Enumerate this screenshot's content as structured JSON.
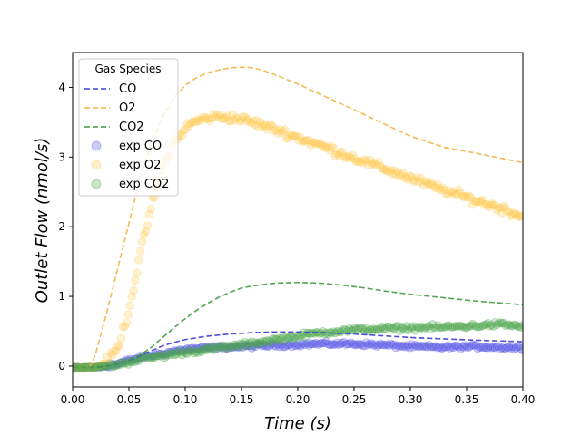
{
  "chart_data": {
    "type": "line",
    "title": "",
    "xlabel_main": "Time",
    "xlabel_unit": "(s)",
    "ylabel_main": "Outlet Flow",
    "ylabel_unit": "(nmol/s)",
    "xlim": [
      0.0,
      0.4
    ],
    "ylim": [
      -0.3,
      4.5
    ],
    "x_ticks": [
      0.0,
      0.05,
      0.1,
      0.15,
      0.2,
      0.25,
      0.3,
      0.35,
      0.4
    ],
    "x_tick_labels": [
      "0.00",
      "0.05",
      "0.10",
      "0.15",
      "0.20",
      "0.25",
      "0.30",
      "0.35",
      "0.40"
    ],
    "y_ticks": [
      0,
      1,
      2,
      3,
      4
    ],
    "y_tick_labels": [
      "0",
      "1",
      "2",
      "3",
      "4"
    ],
    "grid": false,
    "legend": {
      "title": "Gas Species",
      "placement": "top-left",
      "entries": [
        "CO",
        "O2",
        "CO2",
        "exp CO",
        "exp O2",
        "exp CO2"
      ]
    },
    "colors": {
      "CO": "#3b3bdc",
      "O2": "#f5b342",
      "CO2": "#3f9c3f",
      "exp_CO": "#5555e6",
      "exp_O2": "#ffc850",
      "exp_CO2": "#4ca64c"
    },
    "model_series": [
      {
        "name": "CO",
        "color_key": "CO",
        "x": [
          0.0,
          0.02,
          0.03,
          0.04,
          0.05,
          0.06,
          0.07,
          0.08,
          0.09,
          0.1,
          0.12,
          0.14,
          0.16,
          0.18,
          0.2,
          0.22,
          0.25,
          0.28,
          0.3,
          0.33,
          0.36,
          0.4
        ],
        "y": [
          -0.02,
          -0.02,
          0.0,
          0.03,
          0.08,
          0.15,
          0.22,
          0.29,
          0.34,
          0.38,
          0.43,
          0.46,
          0.48,
          0.49,
          0.49,
          0.48,
          0.46,
          0.43,
          0.41,
          0.39,
          0.37,
          0.35
        ]
      },
      {
        "name": "O2",
        "color_key": "O2",
        "x": [
          0.0,
          0.015,
          0.02,
          0.03,
          0.04,
          0.05,
          0.06,
          0.07,
          0.08,
          0.09,
          0.1,
          0.11,
          0.12,
          0.13,
          0.14,
          0.15,
          0.16,
          0.17,
          0.18,
          0.2,
          0.22,
          0.25,
          0.28,
          0.3,
          0.33,
          0.36,
          0.4
        ],
        "y": [
          -0.02,
          -0.02,
          0.15,
          0.75,
          1.4,
          2.05,
          2.7,
          3.2,
          3.58,
          3.85,
          4.03,
          4.14,
          4.21,
          4.25,
          4.28,
          4.29,
          4.28,
          4.24,
          4.18,
          4.05,
          3.9,
          3.68,
          3.45,
          3.3,
          3.14,
          3.05,
          2.92
        ]
      },
      {
        "name": "CO2",
        "color_key": "CO2",
        "x": [
          0.0,
          0.02,
          0.03,
          0.04,
          0.05,
          0.06,
          0.07,
          0.08,
          0.09,
          0.1,
          0.11,
          0.12,
          0.13,
          0.14,
          0.15,
          0.16,
          0.17,
          0.18,
          0.2,
          0.22,
          0.24,
          0.26,
          0.28,
          0.3,
          0.33,
          0.36,
          0.4
        ],
        "y": [
          -0.02,
          -0.02,
          0.0,
          0.03,
          0.08,
          0.16,
          0.27,
          0.41,
          0.55,
          0.68,
          0.8,
          0.9,
          0.99,
          1.06,
          1.12,
          1.15,
          1.17,
          1.19,
          1.2,
          1.19,
          1.16,
          1.12,
          1.07,
          1.03,
          0.98,
          0.93,
          0.88
        ]
      }
    ],
    "experimental_series": [
      {
        "name": "exp CO",
        "color_key": "exp_CO",
        "x": [
          0.0,
          0.02,
          0.04,
          0.05,
          0.06,
          0.08,
          0.1,
          0.12,
          0.15,
          0.18,
          0.2,
          0.22,
          0.25,
          0.28,
          0.3,
          0.33,
          0.36,
          0.4
        ],
        "y": [
          -0.02,
          -0.02,
          0.03,
          0.08,
          0.12,
          0.18,
          0.24,
          0.26,
          0.28,
          0.3,
          0.31,
          0.32,
          0.32,
          0.3,
          0.28,
          0.27,
          0.28,
          0.26
        ]
      },
      {
        "name": "exp O2",
        "color_key": "exp_O2",
        "x": [
          0.0,
          0.02,
          0.03,
          0.04,
          0.05,
          0.06,
          0.07,
          0.08,
          0.09,
          0.1,
          0.11,
          0.12,
          0.13,
          0.14,
          0.15,
          0.16,
          0.18,
          0.2,
          0.22,
          0.24,
          0.26,
          0.28,
          0.3,
          0.32,
          0.34,
          0.36,
          0.38,
          0.4
        ],
        "y": [
          -0.02,
          -0.02,
          0.05,
          0.25,
          0.8,
          1.6,
          2.3,
          2.85,
          3.2,
          3.42,
          3.52,
          3.56,
          3.58,
          3.57,
          3.54,
          3.5,
          3.4,
          3.28,
          3.17,
          3.05,
          2.93,
          2.82,
          2.7,
          2.58,
          2.47,
          2.37,
          2.27,
          2.15
        ]
      },
      {
        "name": "exp CO2",
        "color_key": "exp_CO2",
        "x": [
          0.0,
          0.02,
          0.04,
          0.05,
          0.06,
          0.08,
          0.1,
          0.12,
          0.15,
          0.18,
          0.2,
          0.22,
          0.25,
          0.28,
          0.3,
          0.33,
          0.36,
          0.38,
          0.4
        ],
        "y": [
          -0.02,
          -0.02,
          0.02,
          0.06,
          0.1,
          0.15,
          0.2,
          0.24,
          0.3,
          0.38,
          0.43,
          0.48,
          0.52,
          0.54,
          0.55,
          0.56,
          0.58,
          0.6,
          0.57
        ]
      }
    ]
  }
}
